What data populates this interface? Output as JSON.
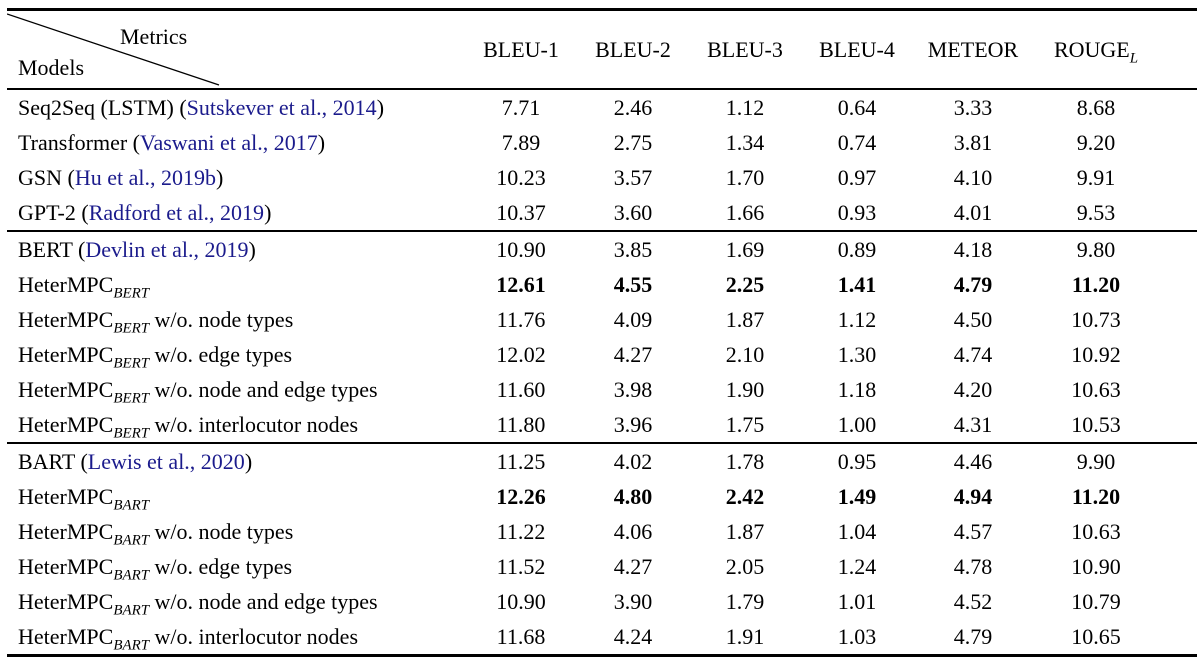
{
  "colors": {
    "citation_link": "#1b1b8c",
    "text": "#000000",
    "rule": "#000000",
    "background": "#ffffff"
  },
  "header": {
    "corner": {
      "metrics": "Metrics",
      "models": "Models"
    },
    "columns": [
      {
        "label": "BLEU-1"
      },
      {
        "label": "BLEU-2"
      },
      {
        "label": "BLEU-3"
      },
      {
        "label": "BLEU-4"
      },
      {
        "label": "METEOR"
      },
      {
        "label": "ROUGE",
        "subscript": "L"
      }
    ]
  },
  "groups": [
    {
      "rows": [
        {
          "prefix": "Seq2Seq (LSTM) (",
          "citation": "Sutskever et al., 2014",
          "suffix": ")",
          "values": [
            "7.71",
            "2.46",
            "1.12",
            "0.64",
            "3.33",
            "8.68"
          ],
          "bold": false
        },
        {
          "prefix": "Transformer (",
          "citation": "Vaswani et al., 2017",
          "suffix": ")",
          "values": [
            "7.89",
            "2.75",
            "1.34",
            "0.74",
            "3.81",
            "9.20"
          ],
          "bold": false
        },
        {
          "prefix": "GSN (",
          "citation": "Hu et al., 2019b",
          "suffix": ")",
          "values": [
            "10.23",
            "3.57",
            "1.70",
            "0.97",
            "4.10",
            "9.91"
          ],
          "bold": false
        },
        {
          "prefix": "GPT-2 (",
          "citation": "Radford et al., 2019",
          "suffix": ")",
          "values": [
            "10.37",
            "3.60",
            "1.66",
            "0.93",
            "4.01",
            "9.53"
          ],
          "bold": false
        }
      ]
    },
    {
      "rows": [
        {
          "prefix": "BERT (",
          "citation": "Devlin et al., 2019",
          "suffix": ")",
          "values": [
            "10.90",
            "3.85",
            "1.69",
            "0.89",
            "4.18",
            "9.80"
          ],
          "bold": false
        },
        {
          "prefix": "HeterMPC",
          "subscript": "BERT",
          "suffix": "",
          "values": [
            "12.61",
            "4.55",
            "2.25",
            "1.41",
            "4.79",
            "11.20"
          ],
          "bold": true
        },
        {
          "prefix": "HeterMPC",
          "subscript": "BERT",
          "suffix": " w/o. node types",
          "values": [
            "11.76",
            "4.09",
            "1.87",
            "1.12",
            "4.50",
            "10.73"
          ],
          "bold": false
        },
        {
          "prefix": "HeterMPC",
          "subscript": "BERT",
          "suffix": " w/o. edge types",
          "values": [
            "12.02",
            "4.27",
            "2.10",
            "1.30",
            "4.74",
            "10.92"
          ],
          "bold": false
        },
        {
          "prefix": "HeterMPC",
          "subscript": "BERT",
          "suffix": " w/o. node and edge types",
          "values": [
            "11.60",
            "3.98",
            "1.90",
            "1.18",
            "4.20",
            "10.63"
          ],
          "bold": false
        },
        {
          "prefix": "HeterMPC",
          "subscript": "BERT",
          "suffix": " w/o. interlocutor nodes",
          "values": [
            "11.80",
            "3.96",
            "1.75",
            "1.00",
            "4.31",
            "10.53"
          ],
          "bold": false
        }
      ]
    },
    {
      "rows": [
        {
          "prefix": "BART (",
          "citation": "Lewis et al., 2020",
          "suffix": ")",
          "values": [
            "11.25",
            "4.02",
            "1.78",
            "0.95",
            "4.46",
            "9.90"
          ],
          "bold": false
        },
        {
          "prefix": "HeterMPC",
          "subscript": "BART",
          "suffix": "",
          "values": [
            "12.26",
            "4.80",
            "2.42",
            "1.49",
            "4.94",
            "11.20"
          ],
          "bold": true
        },
        {
          "prefix": "HeterMPC",
          "subscript": "BART",
          "suffix": " w/o. node types",
          "values": [
            "11.22",
            "4.06",
            "1.87",
            "1.04",
            "4.57",
            "10.63"
          ],
          "bold": false
        },
        {
          "prefix": "HeterMPC",
          "subscript": "BART",
          "suffix": " w/o. edge types",
          "values": [
            "11.52",
            "4.27",
            "2.05",
            "1.24",
            "4.78",
            "10.90"
          ],
          "bold": false
        },
        {
          "prefix": "HeterMPC",
          "subscript": "BART",
          "suffix": " w/o. node and edge types",
          "values": [
            "10.90",
            "3.90",
            "1.79",
            "1.01",
            "4.52",
            "10.79"
          ],
          "bold": false
        },
        {
          "prefix": "HeterMPC",
          "subscript": "BART",
          "suffix": " w/o. interlocutor nodes",
          "values": [
            "11.68",
            "4.24",
            "1.91",
            "1.03",
            "4.79",
            "10.65"
          ],
          "bold": false
        }
      ]
    }
  ]
}
